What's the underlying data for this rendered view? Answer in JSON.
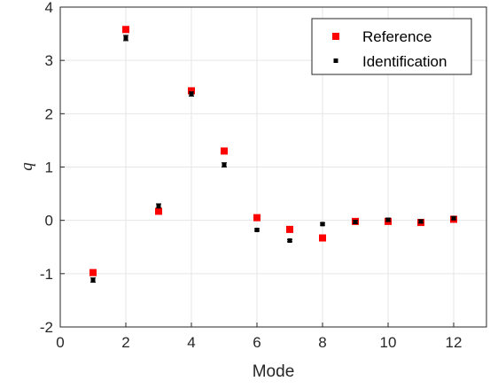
{
  "chart_data": {
    "type": "scatter",
    "title": "",
    "xlabel": "Mode",
    "ylabel": "q",
    "xlim": [
      0,
      13
    ],
    "ylim": [
      -2,
      4
    ],
    "xticks": [
      0,
      2,
      4,
      6,
      8,
      10,
      12
    ],
    "yticks": [
      -2,
      -1,
      0,
      1,
      2,
      3,
      4
    ],
    "grid": true,
    "legend_position": "top-right",
    "series": [
      {
        "name": "Reference",
        "color": "#ff0000",
        "marker": "square",
        "x": [
          1,
          2,
          3,
          4,
          5,
          6,
          7,
          8,
          9,
          10,
          11,
          12
        ],
        "y": [
          -0.98,
          3.58,
          0.17,
          2.43,
          1.3,
          0.05,
          -0.17,
          -0.33,
          -0.02,
          -0.02,
          -0.04,
          0.02
        ]
      },
      {
        "name": "Identification",
        "color": "#000000",
        "marker": "point-errorbar",
        "x": [
          1,
          2,
          3,
          4,
          5,
          6,
          7,
          8,
          9,
          10,
          11,
          12
        ],
        "y": [
          -1.12,
          3.42,
          0.27,
          2.37,
          1.04,
          -0.18,
          -0.38,
          -0.07,
          -0.03,
          0.01,
          -0.02,
          0.04
        ],
        "error": [
          0.04,
          0.05,
          0.04,
          0.04,
          0.04,
          0.02,
          0.02,
          0.02,
          0.03,
          0.03,
          0.03,
          0.03
        ]
      }
    ]
  }
}
